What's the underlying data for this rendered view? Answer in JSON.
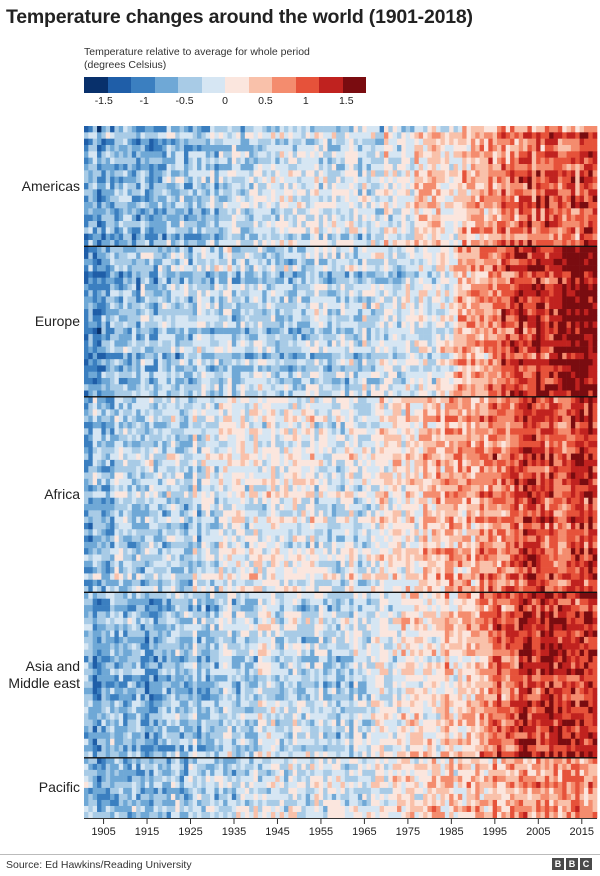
{
  "header": {
    "title": "Temperature changes around the world (1901-2018)"
  },
  "legend": {
    "caption_line1": "Temperature relative to average for whole period",
    "caption_line2": "(degrees Celsius)",
    "tick_labels": [
      "-1.5",
      "-1",
      "-0.5",
      "0",
      "0.5",
      "1",
      "1.5"
    ],
    "color_steps": [
      "#08306b",
      "#1f5ea8",
      "#3b7fc0",
      "#6fa8d6",
      "#a8cbe6",
      "#d6e6f3",
      "#fbe6de",
      "#f9c1aa",
      "#f48c6e",
      "#e6523a",
      "#c0221f",
      "#7a0c10"
    ]
  },
  "chart_data": {
    "type": "heatmap",
    "title": "Temperature changes around the world (1901-2018)",
    "color_scale_label": "Temperature relative to average for whole period (degrees Celsius)",
    "color_range": [
      -1.5,
      1.5
    ],
    "x_range": [
      1901,
      2018
    ],
    "x_ticks": [
      1905,
      1915,
      1925,
      1935,
      1945,
      1955,
      1965,
      1975,
      1985,
      1995,
      2005,
      2015
    ],
    "regions": [
      {
        "name": "Americas",
        "row_share": 0.16,
        "anomaly_by_year": [
          {
            "year": 1901,
            "value": -0.7
          },
          {
            "year": 1920,
            "value": -0.5
          },
          {
            "year": 1940,
            "value": -0.2
          },
          {
            "year": 1960,
            "value": -0.2
          },
          {
            "year": 1980,
            "value": 0.1
          },
          {
            "year": 2000,
            "value": 0.7
          },
          {
            "year": 2018,
            "value": 0.9
          }
        ]
      },
      {
        "name": "Europe",
        "row_share": 0.2,
        "anomaly_by_year": [
          {
            "year": 1901,
            "value": -0.8
          },
          {
            "year": 1920,
            "value": -0.4
          },
          {
            "year": 1940,
            "value": -0.3
          },
          {
            "year": 1960,
            "value": -0.3
          },
          {
            "year": 1980,
            "value": -0.1
          },
          {
            "year": 2000,
            "value": 0.9
          },
          {
            "year": 2018,
            "value": 1.4
          }
        ]
      },
      {
        "name": "Africa",
        "row_share": 0.26,
        "anomaly_by_year": [
          {
            "year": 1901,
            "value": -0.5
          },
          {
            "year": 1920,
            "value": -0.3
          },
          {
            "year": 1940,
            "value": 0.0
          },
          {
            "year": 1960,
            "value": -0.1
          },
          {
            "year": 1980,
            "value": 0.3
          },
          {
            "year": 2000,
            "value": 0.8
          },
          {
            "year": 2018,
            "value": 1.0
          }
        ]
      },
      {
        "name": "Asia and Middle east",
        "row_share": 0.22,
        "anomaly_by_year": [
          {
            "year": 1901,
            "value": -0.6
          },
          {
            "year": 1920,
            "value": -0.5
          },
          {
            "year": 1940,
            "value": -0.2
          },
          {
            "year": 1960,
            "value": -0.2
          },
          {
            "year": 1980,
            "value": 0.1
          },
          {
            "year": 2000,
            "value": 0.9
          },
          {
            "year": 2018,
            "value": 1.2
          }
        ]
      },
      {
        "name": "Pacific",
        "row_share": 0.08,
        "anomaly_by_year": [
          {
            "year": 1901,
            "value": -0.5
          },
          {
            "year": 1920,
            "value": -0.4
          },
          {
            "year": 1940,
            "value": -0.1
          },
          {
            "year": 1960,
            "value": 0.0
          },
          {
            "year": 1980,
            "value": 0.3
          },
          {
            "year": 2000,
            "value": 0.6
          },
          {
            "year": 2018,
            "value": 0.8
          }
        ]
      }
    ],
    "region_labels": [
      {
        "lines": [
          "Americas"
        ]
      },
      {
        "lines": [
          "Europe"
        ]
      },
      {
        "lines": [
          "Africa"
        ]
      },
      {
        "lines": [
          "Asia and",
          "Middle east"
        ]
      },
      {
        "lines": [
          "Pacific"
        ]
      }
    ],
    "grid": false
  },
  "footer": {
    "source": "Source: Ed Hawkins/Reading University",
    "logo_text": "BBC",
    "logo_letters": [
      "B",
      "B",
      "C"
    ]
  }
}
